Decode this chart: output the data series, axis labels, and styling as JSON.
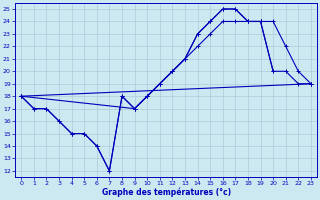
{
  "bg_color": "#cce8f0",
  "grid_color": "#aaccd8",
  "line_color": "#0000bb",
  "xlabel": "Graphe des températures (°c)",
  "ylim": [
    11.5,
    25.5
  ],
  "xlim": [
    -0.5,
    23.5
  ],
  "yticks": [
    12,
    13,
    14,
    15,
    16,
    17,
    18,
    19,
    20,
    21,
    22,
    23,
    24,
    25
  ],
  "xticks": [
    0,
    1,
    2,
    3,
    4,
    5,
    6,
    7,
    8,
    9,
    10,
    11,
    12,
    13,
    14,
    15,
    16,
    17,
    18,
    19,
    20,
    21,
    22,
    23
  ],
  "series": [
    {
      "x": [
        0,
        1,
        2,
        3,
        4,
        5,
        6,
        7,
        8,
        9,
        10,
        11,
        12,
        13,
        14,
        15,
        16,
        17,
        18,
        19,
        20
      ],
      "y": [
        18,
        17,
        17,
        16,
        15,
        15,
        14,
        12,
        18,
        17,
        18,
        19,
        20,
        21,
        23,
        24,
        25,
        25,
        24,
        24,
        20
      ]
    },
    {
      "x": [
        0,
        1,
        2,
        3,
        4,
        5,
        6,
        7,
        8,
        9,
        10,
        11,
        12,
        13,
        14,
        15,
        16,
        17,
        18,
        19,
        20,
        21,
        22,
        23
      ],
      "y": [
        18,
        17,
        17,
        16,
        15,
        15,
        14,
        12,
        18,
        17,
        18,
        19,
        20,
        21,
        23,
        24,
        25,
        25,
        24,
        24,
        20,
        20,
        19,
        19
      ]
    },
    {
      "x": [
        0,
        9,
        10,
        11,
        12,
        13,
        14,
        15,
        16,
        17,
        18,
        19,
        20,
        21,
        22,
        23
      ],
      "y": [
        18,
        17,
        18,
        19,
        20,
        21,
        22,
        23,
        24,
        24,
        24,
        24,
        24,
        22,
        20,
        19
      ]
    },
    {
      "x": [
        0,
        23
      ],
      "y": [
        18,
        19
      ]
    }
  ]
}
